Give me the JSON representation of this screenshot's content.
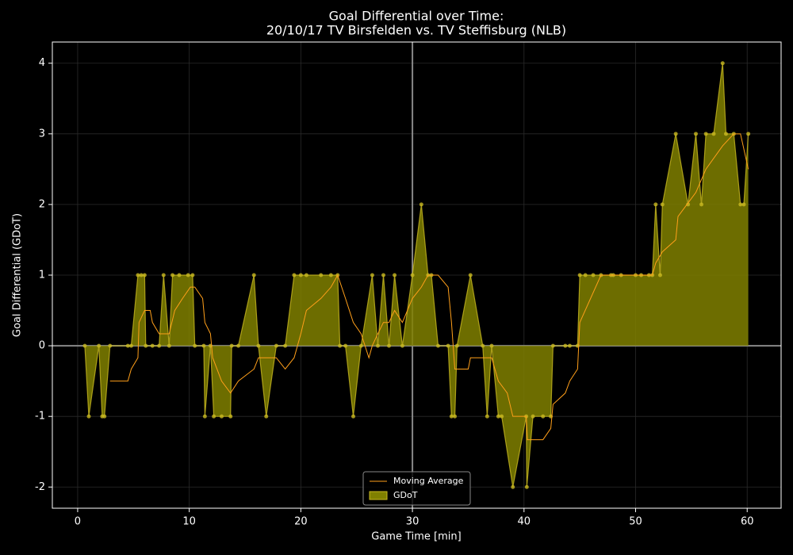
{
  "chart_data": {
    "type": "line",
    "title": "Goal Differential over Time:",
    "subtitle": "20/10/17 TV Birsfelden  vs.  TV Steffisburg (NLB)",
    "x_label": "Game Time [min]",
    "y_label": "Goal Differential (GDoT)",
    "xlim": [
      -2.27,
      63.04
    ],
    "ylim": [
      -2.3,
      4.3
    ],
    "xticks": [
      0,
      10,
      20,
      30,
      40,
      50,
      60
    ],
    "yticks": [
      -2,
      -1,
      0,
      1,
      2,
      3,
      4
    ],
    "grid": true,
    "vline": 30,
    "hline": 0,
    "legend": "lower center",
    "series": [
      {
        "name": "Moving Average",
        "color": "#ff9f1a",
        "kind": "line",
        "x": [
          2.9,
          4.5,
          4.8,
          5.4,
          5.5,
          6.0,
          6.5,
          6.7,
          7.3,
          8.2,
          8.7,
          9.4,
          10.1,
          10.5,
          11.2,
          11.4,
          11.9,
          12.1,
          12.9,
          13.7,
          14.4,
          15.8,
          16.2,
          16.9,
          17.8,
          18.6,
          19.4,
          20.0,
          20.5,
          21.8,
          22.7,
          23.3,
          24.0,
          24.7,
          25.4,
          26.1,
          26.4,
          26.9,
          27.4,
          27.9,
          28.4,
          29.1,
          30.0,
          30.8,
          31.4,
          32.3,
          33.2,
          33.5,
          33.8,
          35.0,
          35.2,
          36.3,
          37.1,
          37.7,
          38.5,
          39.0,
          40.2,
          40.3,
          41.7,
          42.4,
          42.6,
          43.7,
          44.1,
          44.8,
          45.0,
          46.9,
          48.7,
          51.5,
          51.8,
          52.4,
          53.6,
          53.8,
          55.4,
          56.3,
          57.8,
          58.8,
          59.4,
          60.1
        ],
        "values": [
          -0.5,
          -0.5,
          -0.33,
          -0.17,
          0.33,
          0.5,
          0.5,
          0.33,
          0.17,
          0.17,
          0.5,
          0.67,
          0.83,
          0.83,
          0.67,
          0.33,
          0.17,
          -0.17,
          -0.5,
          -0.67,
          -0.5,
          -0.33,
          -0.17,
          -0.17,
          -0.17,
          -0.33,
          -0.17,
          0.17,
          0.5,
          0.67,
          0.83,
          1,
          0.67,
          0.33,
          0.17,
          -0.17,
          0,
          0.17,
          0.33,
          0.33,
          0.5,
          0.33,
          0.67,
          0.83,
          1,
          1,
          0.83,
          0.33,
          -0.33,
          -0.33,
          -0.17,
          -0.17,
          -0.17,
          -0.5,
          -0.67,
          -1,
          -1,
          -1.33,
          -1.33,
          -1.17,
          -0.83,
          -0.67,
          -0.5,
          -0.33,
          0.33,
          1,
          1,
          1,
          1.17,
          1.33,
          1.5,
          1.83,
          2.17,
          2.5,
          2.83,
          3,
          3,
          2.5
        ]
      },
      {
        "name": "GDoT",
        "color": "#808000",
        "kind": "area",
        "point_color": "#c8b820",
        "x": [
          0.64,
          1.0,
          1.9,
          2.2,
          2.4,
          2.9,
          4.5,
          4.8,
          5.4,
          5.7,
          6.0,
          6.1,
          6.7,
          7.3,
          7.7,
          8.2,
          8.5,
          9.1,
          9.9,
          10.3,
          10.5,
          11.3,
          11.4,
          11.9,
          12.2,
          12.9,
          13.7,
          13.8,
          14.4,
          15.8,
          16.2,
          16.9,
          17.8,
          18.6,
          19.4,
          20.0,
          20.5,
          21.8,
          22.7,
          23.3,
          23.5,
          24.0,
          24.7,
          25.4,
          26.4,
          26.9,
          27.4,
          27.9,
          28.4,
          29.1,
          30.0,
          30.8,
          31.4,
          31.7,
          32.3,
          33.2,
          33.5,
          33.8,
          34.0,
          35.2,
          36.3,
          36.7,
          37.1,
          37.7,
          38.0,
          39.0,
          40.2,
          40.25,
          40.8,
          41.7,
          42.4,
          42.6,
          43.7,
          44.1,
          44.8,
          45.0,
          45.5,
          46.2,
          46.9,
          47.8,
          48.0,
          48.7,
          50.0,
          50.5,
          51.2,
          51.5,
          51.8,
          52.2,
          52.4,
          53.6,
          54.7,
          55.4,
          55.9,
          56.3,
          57.0,
          57.8,
          58.1,
          58.8,
          59.4,
          59.7,
          60.1
        ],
        "values": [
          0,
          -1,
          0,
          -1,
          -1,
          0,
          0,
          0,
          1,
          1,
          1,
          0,
          0,
          0,
          1,
          0,
          1,
          1,
          1,
          1,
          0,
          0,
          -1,
          0,
          -1,
          -1,
          -1,
          0,
          0,
          1,
          0,
          -1,
          0,
          0,
          1,
          1,
          1,
          1,
          1,
          1,
          0,
          0,
          -1,
          0,
          1,
          0,
          1,
          0,
          1,
          0,
          1,
          2,
          1,
          1,
          0,
          0,
          -1,
          -1,
          0,
          1,
          0,
          -1,
          0,
          -1,
          -1,
          -2,
          -1,
          -2,
          -1,
          -1,
          -1,
          0,
          0,
          0,
          0,
          1,
          1,
          1,
          1,
          1,
          1,
          1,
          1,
          1,
          1,
          1,
          2,
          1,
          2,
          3,
          2,
          3,
          2,
          3,
          3,
          4,
          3,
          3,
          2,
          2,
          3
        ]
      }
    ]
  }
}
